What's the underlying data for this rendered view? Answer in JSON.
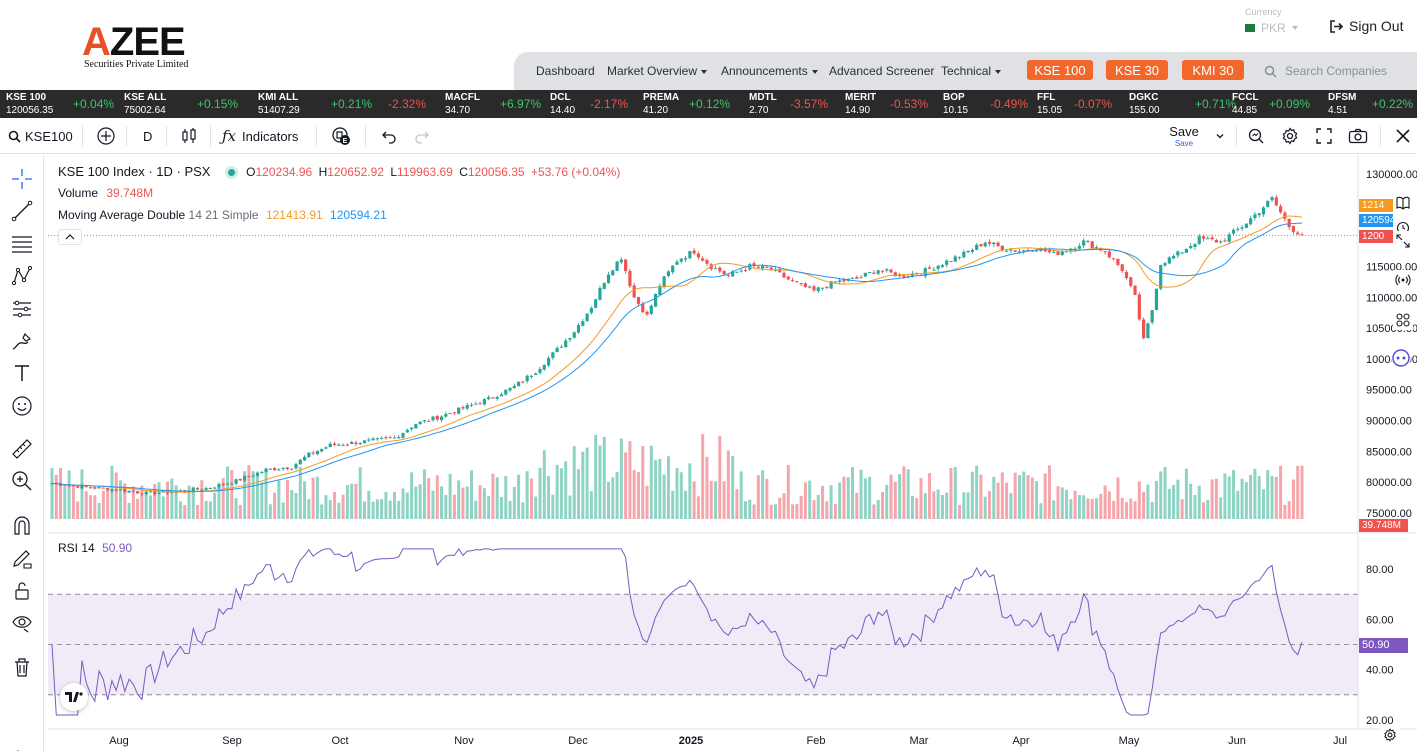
{
  "header": {
    "logo_text": "AZEE",
    "logo_tagline": "Securities Private Limited",
    "currency_label": "Currency",
    "currency_value": "PKR",
    "sign_out": "Sign Out",
    "nav": [
      {
        "label": "Dashboard",
        "dropdown": false
      },
      {
        "label": "Market Overview",
        "dropdown": true
      },
      {
        "label": "Announcements",
        "dropdown": true
      },
      {
        "label": "Advanced Screener",
        "dropdown": false
      },
      {
        "label": "Technical",
        "dropdown": true
      }
    ],
    "index_buttons": [
      "KSE 100",
      "KSE 30",
      "KMI 30"
    ],
    "search_placeholder": "Search Companies",
    "accent_color": "#f3682a"
  },
  "ticker": [
    {
      "symbol": "KSE 100",
      "price": "120056.35",
      "change": "+0.04%",
      "dir": "up"
    },
    {
      "symbol": "KSE ALL",
      "price": "75002.64",
      "change": "+0.15%",
      "dir": "up"
    },
    {
      "symbol": "KMI ALL",
      "price": "51407.29",
      "change": "+0.21%",
      "dir": "up"
    },
    {
      "symbol": "",
      "price": "",
      "change": "-2.32%",
      "dir": "dn"
    },
    {
      "symbol": "MACFL",
      "price": "34.70",
      "change": "+6.97%",
      "dir": "up"
    },
    {
      "symbol": "DCL",
      "price": "14.40",
      "change": "-2.17%",
      "dir": "dn"
    },
    {
      "symbol": "PREMA",
      "price": "41.20",
      "change": "+0.12%",
      "dir": "up"
    },
    {
      "symbol": "MDTL",
      "price": "2.70",
      "change": "-3.57%",
      "dir": "dn"
    },
    {
      "symbol": "MERIT",
      "price": "14.90",
      "change": "-0.53%",
      "dir": "dn"
    },
    {
      "symbol": "BOP",
      "price": "10.15",
      "change": "-0.49%",
      "dir": "dn"
    },
    {
      "symbol": "FFL",
      "price": "15.05",
      "change": "-0.07%",
      "dir": "dn"
    },
    {
      "symbol": "DGKC",
      "price": "155.00",
      "change": "+0.71%",
      "dir": "up"
    },
    {
      "symbol": "FCCL",
      "price": "44.85",
      "change": "+0.09%",
      "dir": "up"
    },
    {
      "symbol": "DFSM",
      "price": "4.51",
      "change": "+0.22%",
      "dir": "up"
    }
  ],
  "toolbar": {
    "symbol": "KSE100",
    "interval": "D",
    "indicators": "Indicators",
    "save": "Save",
    "save_sub": "Save"
  },
  "legend": {
    "title": "KSE 100 Index · 1D · PSX",
    "o_label": "O",
    "o": "120234.96",
    "h_label": "H",
    "h": "120652.92",
    "l_label": "L",
    "l": "119963.69",
    "c_label": "C",
    "c": "120056.35",
    "change": "+53.76 (+0.04%)",
    "volume_label": "Volume",
    "volume": "39.748M",
    "ma_label": "Moving Average Double",
    "ma_params": "14 21 Simple",
    "ma1": "121413.91",
    "ma2": "120594.21",
    "rsi_label": "RSI",
    "rsi_param": "14",
    "rsi_value": "50.90"
  },
  "price_tags": {
    "ma1": "1214",
    "ma2": "120594.",
    "close": "1200",
    "volume": "39.748M",
    "rsi": "50.90"
  },
  "colors": {
    "up": "#26a69a",
    "down": "#ef5350",
    "vol_up": "#8fd3c4",
    "vol_down": "#f5a5ab",
    "ma1": "#f59b22",
    "ma2": "#2196f3",
    "rsi": "#7e57c2"
  },
  "chart_data": [
    {
      "type": "candlestick",
      "title": "KSE 100 Index · 1D · PSX",
      "x_ticks": [
        "Aug",
        "Sep",
        "Oct",
        "Nov",
        "Dec",
        "2025",
        "Feb",
        "Mar",
        "Apr",
        "May",
        "Jun",
        "Jul"
      ],
      "y_ticks": [
        "130000.00",
        "115000.00",
        "110000.00",
        "105000.00",
        "100000.00",
        "95000.00",
        "90000.00",
        "85000.00",
        "80000.00",
        "75000.00"
      ],
      "ylim": [
        73000,
        130000
      ],
      "close": [
        [
          0,
          79800
        ],
        [
          8,
          79200
        ],
        [
          15,
          78800
        ],
        [
          22,
          78200
        ],
        [
          29,
          78500
        ],
        [
          36,
          79000
        ],
        [
          43,
          80200
        ],
        [
          50,
          82000
        ],
        [
          56,
          82500
        ],
        [
          60,
          84500
        ],
        [
          65,
          86000
        ],
        [
          72,
          86500
        ],
        [
          80,
          87200
        ],
        [
          85,
          89500
        ],
        [
          90,
          90500
        ],
        [
          96,
          92000
        ],
        [
          102,
          93500
        ],
        [
          108,
          95500
        ],
        [
          113,
          98000
        ],
        [
          118,
          101500
        ],
        [
          122,
          104500
        ],
        [
          126,
          108500
        ],
        [
          130,
          114000
        ],
        [
          133,
          116500
        ],
        [
          136,
          110000
        ],
        [
          139,
          107000
        ],
        [
          142,
          112000
        ],
        [
          146,
          116000
        ],
        [
          150,
          117500
        ],
        [
          154,
          115000
        ],
        [
          158,
          113500
        ],
        [
          163,
          115000
        ],
        [
          168,
          114500
        ],
        [
          173,
          112500
        ],
        [
          178,
          111000
        ],
        [
          183,
          112500
        ],
        [
          188,
          113000
        ],
        [
          193,
          114500
        ],
        [
          198,
          113500
        ],
        [
          203,
          114000
        ],
        [
          208,
          115500
        ],
        [
          213,
          117000
        ],
        [
          218,
          119000
        ],
        [
          222,
          118000
        ],
        [
          226,
          117500
        ],
        [
          230,
          118000
        ],
        [
          234,
          117000
        ],
        [
          238,
          118000
        ],
        [
          241,
          119000
        ],
        [
          246,
          117500
        ],
        [
          250,
          114500
        ],
        [
          253,
          110000
        ],
        [
          255,
          103000
        ],
        [
          257,
          108000
        ],
        [
          259,
          115500
        ],
        [
          263,
          117000
        ],
        [
          268,
          119500
        ],
        [
          273,
          119000
        ],
        [
          278,
          121500
        ],
        [
          282,
          124000
        ],
        [
          285,
          126000
        ],
        [
          289,
          121500
        ],
        [
          292,
          120056
        ]
      ],
      "moving_average_14": 121413.91,
      "moving_average_21": 120594.21
    },
    {
      "type": "bar",
      "title": "Volume",
      "last_value": "39.748M"
    },
    {
      "type": "line",
      "title": "RSI 14",
      "y_ticks": [
        "80.00",
        "60.00",
        "40.00",
        "20.00"
      ],
      "ylim": [
        20,
        85
      ],
      "bands": [
        70,
        50,
        30
      ],
      "last_value": 50.9
    }
  ]
}
